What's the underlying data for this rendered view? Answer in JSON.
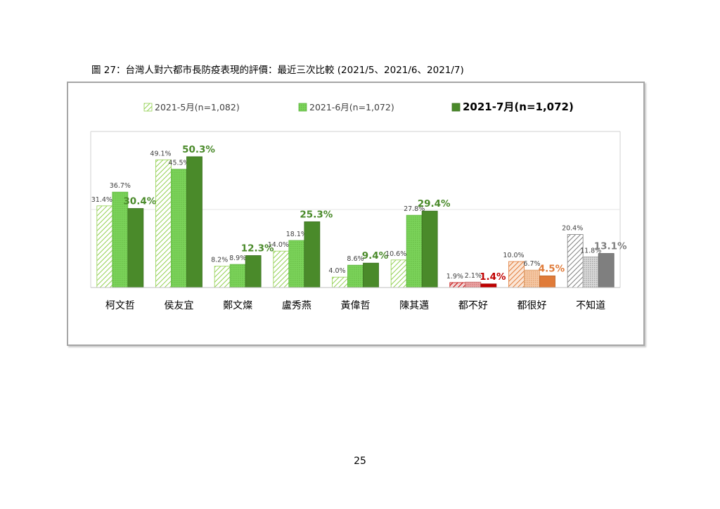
{
  "figure": {
    "title": "圖 27：台灣人對六都市長防疫表現的評價：最近三次比較 (2021/5、2021/6、2021/7)"
  },
  "page_number": "25",
  "colors": {
    "green_light": "#92d050",
    "green_mid": "#7bd35a",
    "green_dark": "#4a8a2a",
    "red_dark": "#c00000",
    "red_light": "#e8a0a0",
    "orange_dark": "#e07b39",
    "orange_light": "#f4c7a4",
    "gray_dark": "#7f7f7f",
    "gray_light": "#c0c0c0"
  },
  "chart_data": {
    "type": "bar",
    "categories": [
      "柯文哲",
      "侯友宜",
      "鄭文燦",
      "盧秀燕",
      "黃偉哲",
      "陳其邁",
      "都不好",
      "都很好",
      "不知道"
    ],
    "series": [
      {
        "name": "2021-5月(n=1,082)",
        "values": [
          31.4,
          49.1,
          8.2,
          14.0,
          4.0,
          10.6,
          1.9,
          10.0,
          20.4
        ]
      },
      {
        "name": "2021-6月(n=1,072)",
        "values": [
          36.7,
          45.5,
          8.9,
          18.1,
          8.6,
          27.8,
          2.1,
          6.7,
          11.8
        ]
      },
      {
        "name": "2021-7月(n=1,072)",
        "values": [
          30.4,
          50.3,
          12.3,
          25.3,
          9.4,
          29.4,
          1.4,
          4.5,
          13.1
        ]
      }
    ],
    "data_labels": [
      [
        "31.4%",
        "49.1%",
        "8.2%",
        "14.0%",
        "4.0%",
        "10.6%",
        "1.9%",
        "10.0%",
        "20.4%"
      ],
      [
        "36.7%",
        "45.5%",
        "8.9%",
        "18.1%",
        "8.6%",
        "27.8%",
        "2.1%",
        "6.7%",
        "11.8%"
      ],
      [
        "30.4%",
        "50.3%",
        "12.3%",
        "25.3%",
        "9.4%",
        "29.4%",
        "1.4%",
        "4.5%",
        "13.1%"
      ]
    ],
    "category_groups": [
      "green",
      "green",
      "green",
      "green",
      "green",
      "green",
      "red",
      "orange",
      "gray"
    ],
    "ylim": [
      0,
      60
    ],
    "reference_line": 30,
    "legend_position": "top"
  }
}
